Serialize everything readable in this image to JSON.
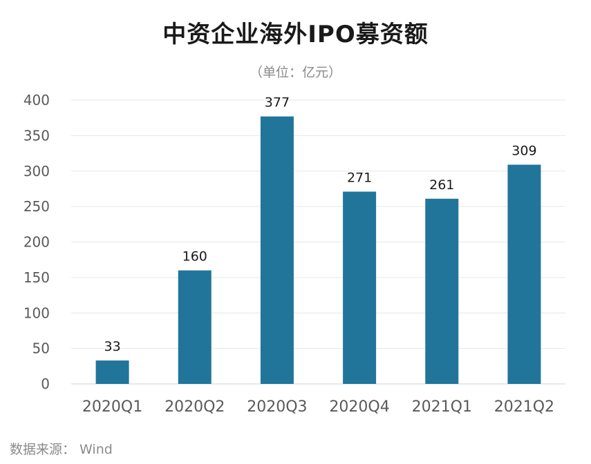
{
  "chart_data": {
    "type": "bar",
    "title": "中资企业海外IPO募资额",
    "subtitle": "（单位：亿元）",
    "source": "数据来源：  Wind",
    "categories": [
      "2020Q1",
      "2020Q2",
      "2020Q3",
      "2020Q4",
      "2021Q1",
      "2021Q2"
    ],
    "values": [
      33,
      160,
      377,
      271,
      261,
      309
    ],
    "data_labels": [
      "33",
      "160",
      "377",
      "271",
      "261",
      "309"
    ],
    "ylim": [
      0,
      400
    ],
    "yticks": [
      0,
      50,
      100,
      150,
      200,
      250,
      300,
      350,
      400
    ],
    "grid": true,
    "legend": "none",
    "bar_color": "#21759b",
    "xlabel": "",
    "ylabel": ""
  }
}
